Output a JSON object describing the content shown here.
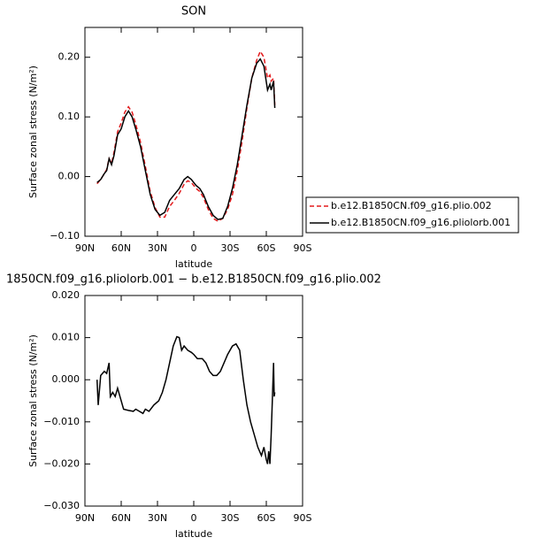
{
  "chart_data": [
    {
      "type": "line",
      "title": "SON",
      "xlabel": "latitude",
      "ylabel": "Surface zonal stress (N/m²)",
      "x": [
        80,
        77,
        74,
        72,
        70,
        68,
        66,
        63,
        60,
        57,
        54,
        51,
        48,
        44,
        40,
        36,
        32,
        28,
        24,
        20,
        16,
        12,
        8,
        5,
        2,
        -2,
        -5,
        -8,
        -12,
        -16,
        -20,
        -24,
        -28,
        -32,
        -36,
        -40,
        -44,
        -48,
        -52,
        -55,
        -58,
        -61,
        -63,
        -64,
        -66,
        -67
      ],
      "series": [
        {
          "name": "b.e12.B1850CN.f09_g16.plio.002",
          "color": "#e31a1c",
          "dashed": true,
          "values": [
            -0.012,
            -0.005,
            0.005,
            0.012,
            0.03,
            0.022,
            0.04,
            0.075,
            0.09,
            0.108,
            0.117,
            0.108,
            0.088,
            0.057,
            0.017,
            -0.025,
            -0.052,
            -0.068,
            -0.068,
            -0.05,
            -0.04,
            -0.028,
            -0.013,
            -0.007,
            -0.01,
            -0.02,
            -0.025,
            -0.035,
            -0.055,
            -0.07,
            -0.075,
            -0.07,
            -0.055,
            -0.03,
            0.01,
            0.06,
            0.115,
            0.165,
            0.195,
            0.21,
            0.2,
            0.165,
            0.17,
            0.16,
            0.165,
            0.12
          ]
        },
        {
          "name": "b.e12.B1850CN.f09_g16.pliolorb.001",
          "color": "#000000",
          "dashed": false,
          "values": [
            -0.01,
            -0.005,
            0.005,
            0.01,
            0.03,
            0.02,
            0.035,
            0.07,
            0.08,
            0.1,
            0.11,
            0.1,
            0.08,
            0.05,
            0.01,
            -0.03,
            -0.055,
            -0.065,
            -0.06,
            -0.04,
            -0.03,
            -0.02,
            -0.005,
            0.0,
            -0.005,
            -0.015,
            -0.02,
            -0.03,
            -0.05,
            -0.065,
            -0.072,
            -0.07,
            -0.05,
            -0.02,
            0.02,
            0.07,
            0.12,
            0.165,
            0.19,
            0.197,
            0.185,
            0.145,
            0.155,
            0.145,
            0.16,
            0.115
          ]
        }
      ],
      "xlim": [
        90,
        -90
      ],
      "xticks": [
        {
          "value": 90,
          "label": "90N"
        },
        {
          "value": 60,
          "label": "60N"
        },
        {
          "value": 30,
          "label": "30N"
        },
        0,
        {
          "value": -30,
          "label": "30S"
        },
        {
          "value": -60,
          "label": "60S"
        },
        {
          "value": -90,
          "label": "90S"
        }
      ],
      "ylim": [
        -0.1,
        0.25
      ],
      "yticks": [
        {
          "value": -0.1,
          "label": "−0.10"
        },
        {
          "value": 0,
          "label": "0.00"
        },
        {
          "value": 0.1,
          "label": "0.10"
        },
        {
          "value": 0.2,
          "label": "0.20"
        }
      ],
      "legend": "right"
    },
    {
      "type": "line",
      "title": "1850CN.f09_g16.pliolorb.001 − b.e12.B1850CN.f09_g16.plio.002",
      "xlabel": "latitude",
      "ylabel": "Surface zonal stress (N/m²)",
      "x": [
        80,
        79,
        77,
        74,
        72,
        70,
        69,
        67,
        65,
        63,
        61,
        58,
        54,
        50,
        48,
        45,
        42,
        40,
        37,
        33,
        29,
        26,
        23,
        20,
        17,
        14,
        12,
        10,
        8,
        5,
        2,
        0,
        -3,
        -7,
        -10,
        -13,
        -16,
        -19,
        -22,
        -25,
        -28,
        -32,
        -35,
        -38,
        -41,
        -44,
        -47,
        -50,
        -53,
        -56,
        -58,
        -60,
        -61,
        -62,
        -63,
        -64,
        -65,
        -66,
        -66.5,
        -67
      ],
      "series": [
        {
          "color": "#000000",
          "dashed": false,
          "values": [
            0.0,
            -0.006,
            0.001,
            0.002,
            0.0015,
            0.004,
            -0.004,
            -0.003,
            -0.004,
            -0.002,
            -0.004,
            -0.007,
            -0.0073,
            -0.0075,
            -0.007,
            -0.0075,
            -0.008,
            -0.007,
            -0.0075,
            -0.006,
            -0.005,
            -0.003,
            0.0,
            0.004,
            0.008,
            0.0102,
            0.01,
            0.007,
            0.008,
            0.007,
            0.0065,
            0.006,
            0.005,
            0.005,
            0.004,
            0.002,
            0.001,
            0.001,
            0.002,
            0.004,
            0.006,
            0.008,
            0.0085,
            0.007,
            0.0,
            -0.006,
            -0.01,
            -0.013,
            -0.016,
            -0.018,
            -0.016,
            -0.019,
            -0.02,
            -0.017,
            -0.02,
            -0.013,
            -0.005,
            0.004,
            -0.004,
            -0.003
          ]
        }
      ],
      "xlim": [
        90,
        -90
      ],
      "xticks": [
        {
          "value": 90,
          "label": "90N"
        },
        {
          "value": 60,
          "label": "60N"
        },
        {
          "value": 30,
          "label": "30N"
        },
        0,
        {
          "value": -30,
          "label": "30S"
        },
        {
          "value": -60,
          "label": "60S"
        },
        {
          "value": -90,
          "label": "90S"
        }
      ],
      "ylim": [
        -0.03,
        0.02
      ],
      "yticks": [
        {
          "value": -0.03,
          "label": "−0.030"
        },
        {
          "value": -0.02,
          "label": "−0.020"
        },
        {
          "value": -0.01,
          "label": "−0.010"
        },
        {
          "value": 0,
          "label": "0.000"
        },
        {
          "value": 0.01,
          "label": "0.010"
        },
        {
          "value": 0.02,
          "label": "0.020"
        }
      ]
    }
  ]
}
